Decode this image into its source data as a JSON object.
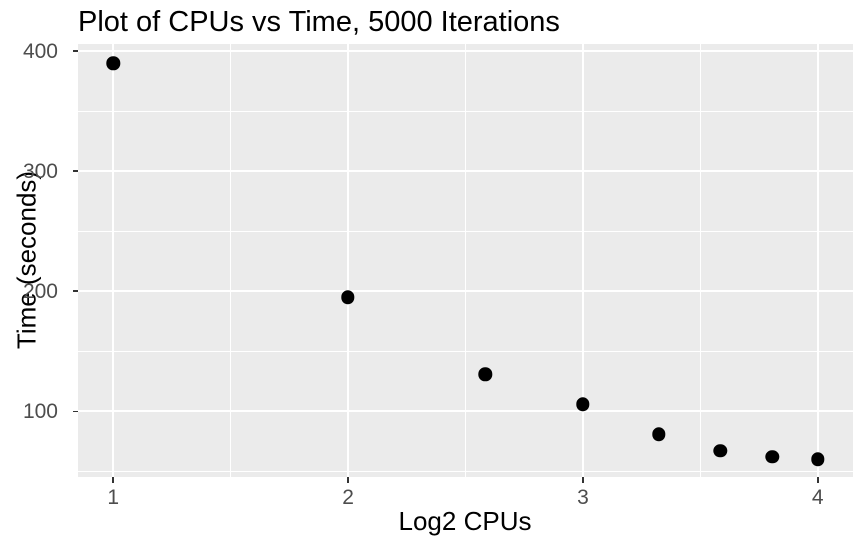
{
  "title": "Plot of CPUs vs Time, 5000 Iterations",
  "chart_data": {
    "type": "scatter",
    "title": "Plot of CPUs vs Time, 5000 Iterations",
    "xlabel": "Log2 CPUs",
    "ylabel": "Time (seconds)",
    "x": [
      1,
      2,
      2.585,
      3,
      3.322,
      3.585,
      3.807,
      4
    ],
    "y": [
      390,
      195,
      131,
      106,
      81,
      67,
      62,
      60
    ],
    "xlim": [
      0.85,
      4.15
    ],
    "ylim": [
      45.3,
      406
    ],
    "x_major_ticks": [
      1,
      2,
      3,
      4
    ],
    "x_tick_labels": [
      "1",
      "2",
      "3",
      "4"
    ],
    "x_minor_ticks": [
      1.5,
      2.5,
      3.5
    ],
    "y_major_ticks": [
      100,
      200,
      300,
      400
    ],
    "y_tick_labels": [
      "100",
      "200",
      "300",
      "400"
    ],
    "y_minor_ticks": [
      50,
      150,
      250,
      350
    ],
    "grid": "major+minor",
    "legend": "none",
    "colors": {
      "point": "#000000",
      "panel_bg": "#EBEBEB",
      "gridline": "#FFFFFF",
      "tick_mark": "#333333",
      "tick_label": "#4D4D4D",
      "axis_title": "#000000",
      "title": "#000000",
      "background": "#FFFFFF"
    }
  }
}
